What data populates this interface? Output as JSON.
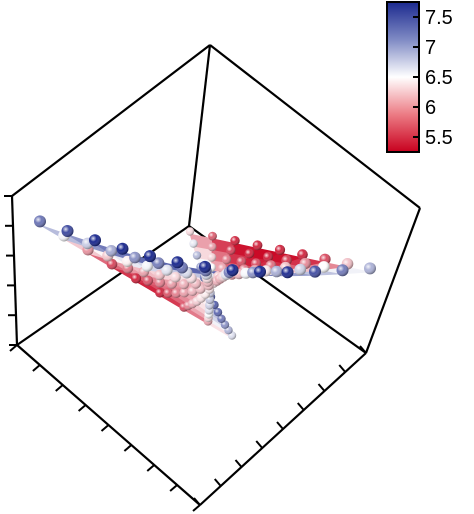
{
  "chart_data": {
    "type": "surface3d",
    "title": "",
    "xlabel": "",
    "ylabel": "",
    "zlabel": "",
    "colorbar": {
      "ticks": [
        "7.5",
        "7",
        "6.5",
        "6",
        "5.5"
      ],
      "tick_values": [
        7.5,
        7.0,
        6.5,
        6.0,
        5.5
      ],
      "range": [
        5.25,
        7.75
      ],
      "colormap": [
        "#c8001e",
        "#ffffff",
        "#1c2a8f"
      ],
      "placement": "top-right"
    },
    "grid": false,
    "surface": {
      "description_rows": 9,
      "description_cols": 13,
      "z_min": 5.25,
      "z_max": 7.75
    }
  }
}
